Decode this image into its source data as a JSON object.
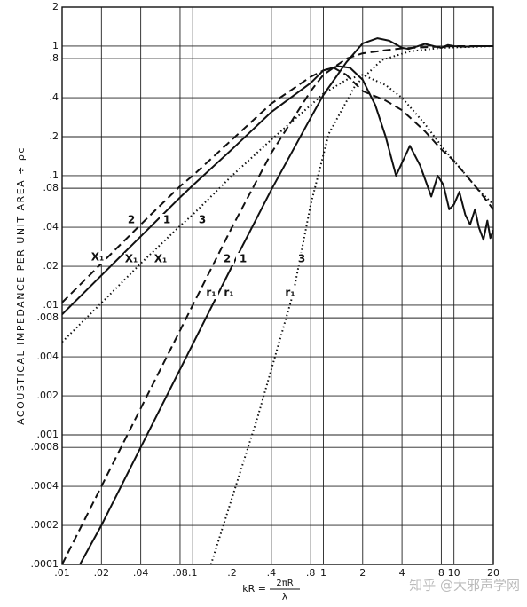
{
  "chart_data": {
    "type": "line",
    "ylabel": "ACOUSTICAL IMPEDANCE PER UNIT AREA ÷ ρc",
    "xlabel": {
      "left": "kR =",
      "numerator": "2πR",
      "denominator": "λ"
    },
    "watermark": "知乎 @大邪声学网",
    "x_scale": "log",
    "y_scale": "log",
    "grid": true,
    "xlim": [
      0.01,
      20
    ],
    "ylim": [
      0.0001,
      2
    ],
    "xticks": [
      {
        "value": 0.01,
        "label": ".01"
      },
      {
        "value": 0.02,
        "label": ".02"
      },
      {
        "value": 0.04,
        "label": ".04"
      },
      {
        "value": 0.08,
        "label": ".08"
      },
      {
        "value": 0.1,
        "label": ".1"
      },
      {
        "value": 0.2,
        "label": ".2"
      },
      {
        "value": 0.4,
        "label": ".4"
      },
      {
        "value": 0.8,
        "label": ".8"
      },
      1,
      2,
      4,
      8,
      10,
      20
    ],
    "yticks": [
      {
        "value": 0.0001,
        "label": ".0001"
      },
      {
        "value": 0.0002,
        "label": ".0002"
      },
      {
        "value": 0.0004,
        "label": ".0004"
      },
      {
        "value": 0.0008,
        "label": ".0008"
      },
      {
        "value": 0.001,
        "label": ".001"
      },
      {
        "value": 0.002,
        "label": ".002"
      },
      {
        "value": 0.004,
        "label": ".004"
      },
      {
        "value": 0.008,
        "label": ".008"
      },
      {
        "value": 0.01,
        "label": ".01"
      },
      {
        "value": 0.02,
        "label": ".02"
      },
      {
        "value": 0.04,
        "label": ".04"
      },
      {
        "value": 0.08,
        "label": ".08"
      },
      {
        "value": 0.1,
        "label": ".1"
      },
      {
        "value": 0.2,
        "label": ".2"
      },
      {
        "value": 0.4,
        "label": ".4"
      },
      {
        "value": 0.8,
        "label": ".8"
      },
      1,
      2
    ],
    "annotations": [
      "2",
      "1",
      "3",
      "X₁",
      "X₁",
      "X₁",
      "2",
      "1",
      "3",
      "r₁",
      "r₁",
      "r₁"
    ],
    "series": [
      {
        "color": "#111",
        "dash": "solid",
        "x": [
          0.01,
          0.02,
          0.04,
          0.08,
          0.1,
          0.2,
          0.4,
          0.8,
          1,
          1.3,
          1.6,
          2,
          2.5,
          3,
          3.6,
          4.6,
          5.5,
          6.7,
          7.5,
          8.3,
          9.2,
          10,
          11,
          12.2,
          13.3,
          14.5,
          15.5,
          16.8,
          18,
          19,
          20
        ],
        "values": [
          0.0085,
          0.017,
          0.034,
          0.068,
          0.084,
          0.16,
          0.31,
          0.52,
          0.65,
          0.7,
          0.68,
          0.55,
          0.35,
          0.2,
          0.1,
          0.17,
          0.12,
          0.069,
          0.1,
          0.085,
          0.055,
          0.06,
          0.075,
          0.05,
          0.042,
          0.055,
          0.04,
          0.032,
          0.045,
          0.033,
          0.038
        ]
      },
      {
        "color": "#111",
        "dash": "solid",
        "x": [
          0.0137,
          0.02,
          0.04,
          0.08,
          0.1,
          0.2,
          0.4,
          0.8,
          1,
          1.5,
          2,
          2.6,
          3.2,
          4,
          4.5,
          5,
          6,
          7,
          8,
          9,
          10,
          12,
          15,
          20
        ],
        "values": [
          0.0001,
          0.0002,
          0.0008,
          0.0032,
          0.005,
          0.02,
          0.078,
          0.28,
          0.42,
          0.75,
          1.05,
          1.15,
          1.1,
          0.97,
          0.95,
          0.98,
          1.04,
          1,
          0.97,
          1.02,
          1,
          0.99,
          1,
          1
        ]
      },
      {
        "color": "#111",
        "dash": "dashed",
        "x": [
          0.01,
          0.02,
          0.04,
          0.08,
          0.1,
          0.2,
          0.4,
          0.8,
          1,
          1.2,
          1.5,
          2,
          3,
          4,
          6,
          8,
          10,
          15,
          20
        ],
        "values": [
          0.0105,
          0.021,
          0.042,
          0.083,
          0.1,
          0.19,
          0.36,
          0.58,
          0.65,
          0.68,
          0.6,
          0.45,
          0.38,
          0.32,
          0.22,
          0.16,
          0.13,
          0.08,
          0.055
        ]
      },
      {
        "color": "#111",
        "dash": "dashed",
        "x": [
          0.01,
          0.02,
          0.04,
          0.08,
          0.1,
          0.2,
          0.4,
          0.8,
          1,
          1.5,
          2,
          3,
          4,
          6,
          10,
          20
        ],
        "values": [
          0.0001,
          0.0004,
          0.0016,
          0.0064,
          0.01,
          0.04,
          0.15,
          0.45,
          0.6,
          0.8,
          0.88,
          0.93,
          0.96,
          0.98,
          1,
          1
        ]
      },
      {
        "color": "#111",
        "dash": "dotted",
        "x": [
          0.01,
          0.02,
          0.04,
          0.08,
          0.1,
          0.2,
          0.4,
          0.8,
          1,
          1.5,
          2,
          3,
          4,
          6,
          8,
          10,
          15,
          20
        ],
        "values": [
          0.0052,
          0.0104,
          0.021,
          0.041,
          0.05,
          0.1,
          0.19,
          0.35,
          0.43,
          0.55,
          0.6,
          0.5,
          0.4,
          0.25,
          0.17,
          0.13,
          0.08,
          0.06
        ]
      },
      {
        "color": "#111",
        "dash": "dotted",
        "x": [
          0.138,
          0.314,
          0.59,
          0.8,
          1.1,
          1.76,
          2.8,
          4.6,
          8,
          20
        ],
        "values": [
          0.0001,
          0.00137,
          0.0125,
          0.06,
          0.21,
          0.5,
          0.78,
          0.91,
          0.97,
          1
        ]
      }
    ]
  }
}
